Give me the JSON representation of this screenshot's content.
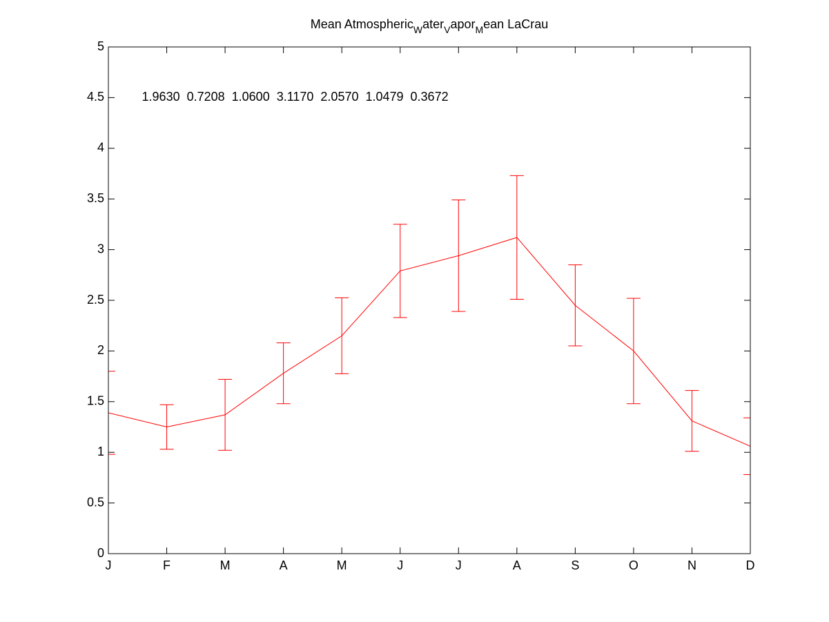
{
  "chart_data": {
    "type": "line",
    "title_parts": [
      "Mean Atmospheric",
      "W",
      "ater",
      "V",
      "apor",
      "M",
      "ean LaCrau"
    ],
    "annotation": "1.9630  0.7208  1.0600  3.1170  2.0570  1.0479  0.3672",
    "annotation_at": [
      2,
      4.5
    ],
    "categories": [
      "J",
      "F",
      "M",
      "A",
      "M",
      "J",
      "J",
      "A",
      "S",
      "O",
      "N",
      "D"
    ],
    "values": [
      1.39,
      1.25,
      1.37,
      1.78,
      2.15,
      2.79,
      2.94,
      3.12,
      2.45,
      2.0,
      1.31,
      1.06
    ],
    "errors": [
      0.41,
      0.22,
      0.35,
      0.3,
      0.375,
      0.46,
      0.55,
      0.61,
      0.4,
      0.52,
      0.3,
      0.28
    ],
    "color": "#ff0000",
    "xlim": [
      1,
      12
    ],
    "ylim": [
      0,
      5
    ],
    "yticks": [
      0,
      0.5,
      1,
      1.5,
      2,
      2.5,
      3,
      3.5,
      4,
      4.5,
      5
    ]
  }
}
